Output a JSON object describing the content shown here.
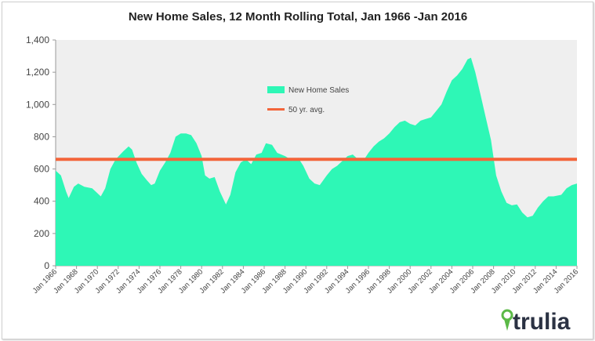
{
  "chart_data": {
    "type": "area",
    "title": "New Home Sales, 12 Month Rolling Total, Jan 1966 -Jan 2016",
    "xlabel": "",
    "ylabel": "",
    "ylim": [
      0,
      1400
    ],
    "yticks": [
      "0",
      "200",
      "400",
      "600",
      "800",
      "1,000",
      "1,200",
      "1,400"
    ],
    "ytick_values": [
      0,
      200,
      400,
      600,
      800,
      1000,
      1200,
      1400
    ],
    "xticks": [
      "Jan 1966",
      "Jan 1968",
      "Jan 1970",
      "Jan 1972",
      "Jan 1974",
      "Jan 1976",
      "Jan 1978",
      "Jan 1980",
      "Jan 1982",
      "Jan 1984",
      "Jan 1986",
      "Jan 1988",
      "Jan 1990",
      "Jan 1992",
      "Jan 1994",
      "Jan 1996",
      "Jan 1998",
      "Jan 2000",
      "Jan 2002",
      "Jan 2004",
      "Jan 2006",
      "Jan 2008",
      "Jan 2010",
      "Jan 2012",
      "Jan 2014",
      "Jan 2016"
    ],
    "xlim": [
      "1966-01",
      "2016-01"
    ],
    "grid": false,
    "legend_position": "center-top",
    "colors": {
      "area": "#2ef7b6",
      "average": "#f3653a",
      "plot_background": "#efefef"
    },
    "series": [
      {
        "name": "New Home Sales",
        "type": "area",
        "x": [
          "1966-01",
          "1966-07",
          "1967-01",
          "1967-04",
          "1967-10",
          "1968-03",
          "1968-10",
          "1969-07",
          "1970-01",
          "1970-05",
          "1970-10",
          "1971-04",
          "1971-10",
          "1972-07",
          "1973-01",
          "1973-05",
          "1973-10",
          "1974-04",
          "1974-10",
          "1975-03",
          "1975-07",
          "1976-01",
          "1976-07",
          "1977-01",
          "1977-07",
          "1978-01",
          "1978-07",
          "1979-01",
          "1979-07",
          "1980-01",
          "1980-05",
          "1980-10",
          "1981-04",
          "1981-10",
          "1982-05",
          "1982-10",
          "1983-04",
          "1983-10",
          "1984-04",
          "1984-10",
          "1985-04",
          "1985-10",
          "1986-03",
          "1986-10",
          "1987-04",
          "1988-01",
          "1988-10",
          "1989-04",
          "1989-10",
          "1990-05",
          "1990-11",
          "1991-05",
          "1992-01",
          "1992-07",
          "1993-01",
          "1993-07",
          "1994-01",
          "1994-07",
          "1995-01",
          "1995-07",
          "1996-01",
          "1996-07",
          "1997-01",
          "1997-07",
          "1998-01",
          "1998-07",
          "1999-01",
          "1999-07",
          "2000-01",
          "2000-07",
          "2001-01",
          "2001-07",
          "2002-01",
          "2002-07",
          "2003-01",
          "2003-07",
          "2004-01",
          "2004-07",
          "2005-01",
          "2005-07",
          "2005-11",
          "2006-04",
          "2006-10",
          "2007-04",
          "2007-10",
          "2008-04",
          "2008-10",
          "2009-04",
          "2009-10",
          "2010-04",
          "2010-10",
          "2011-04",
          "2011-10",
          "2012-04",
          "2012-10",
          "2013-04",
          "2013-10",
          "2014-07",
          "2015-01",
          "2015-07",
          "2016-01"
        ],
        "values": [
          590,
          560,
          460,
          420,
          490,
          510,
          490,
          480,
          450,
          430,
          480,
          600,
          660,
          710,
          740,
          720,
          640,
          570,
          530,
          500,
          510,
          590,
          640,
          700,
          800,
          820,
          820,
          810,
          760,
          680,
          560,
          540,
          550,
          460,
          380,
          440,
          580,
          640,
          660,
          630,
          690,
          700,
          760,
          750,
          700,
          680,
          650,
          670,
          620,
          540,
          510,
          500,
          560,
          600,
          620,
          650,
          680,
          690,
          660,
          650,
          700,
          740,
          770,
          790,
          820,
          860,
          890,
          900,
          880,
          870,
          900,
          910,
          920,
          960,
          1000,
          1080,
          1150,
          1180,
          1220,
          1280,
          1290,
          1200,
          1060,
          920,
          780,
          560,
          460,
          390,
          375,
          380,
          330,
          300,
          310,
          360,
          400,
          430,
          430,
          440,
          480,
          500,
          510
        ]
      },
      {
        "name": "50 yr. avg.",
        "type": "line",
        "value": 660
      }
    ]
  },
  "logo": {
    "text": "trulia"
  }
}
